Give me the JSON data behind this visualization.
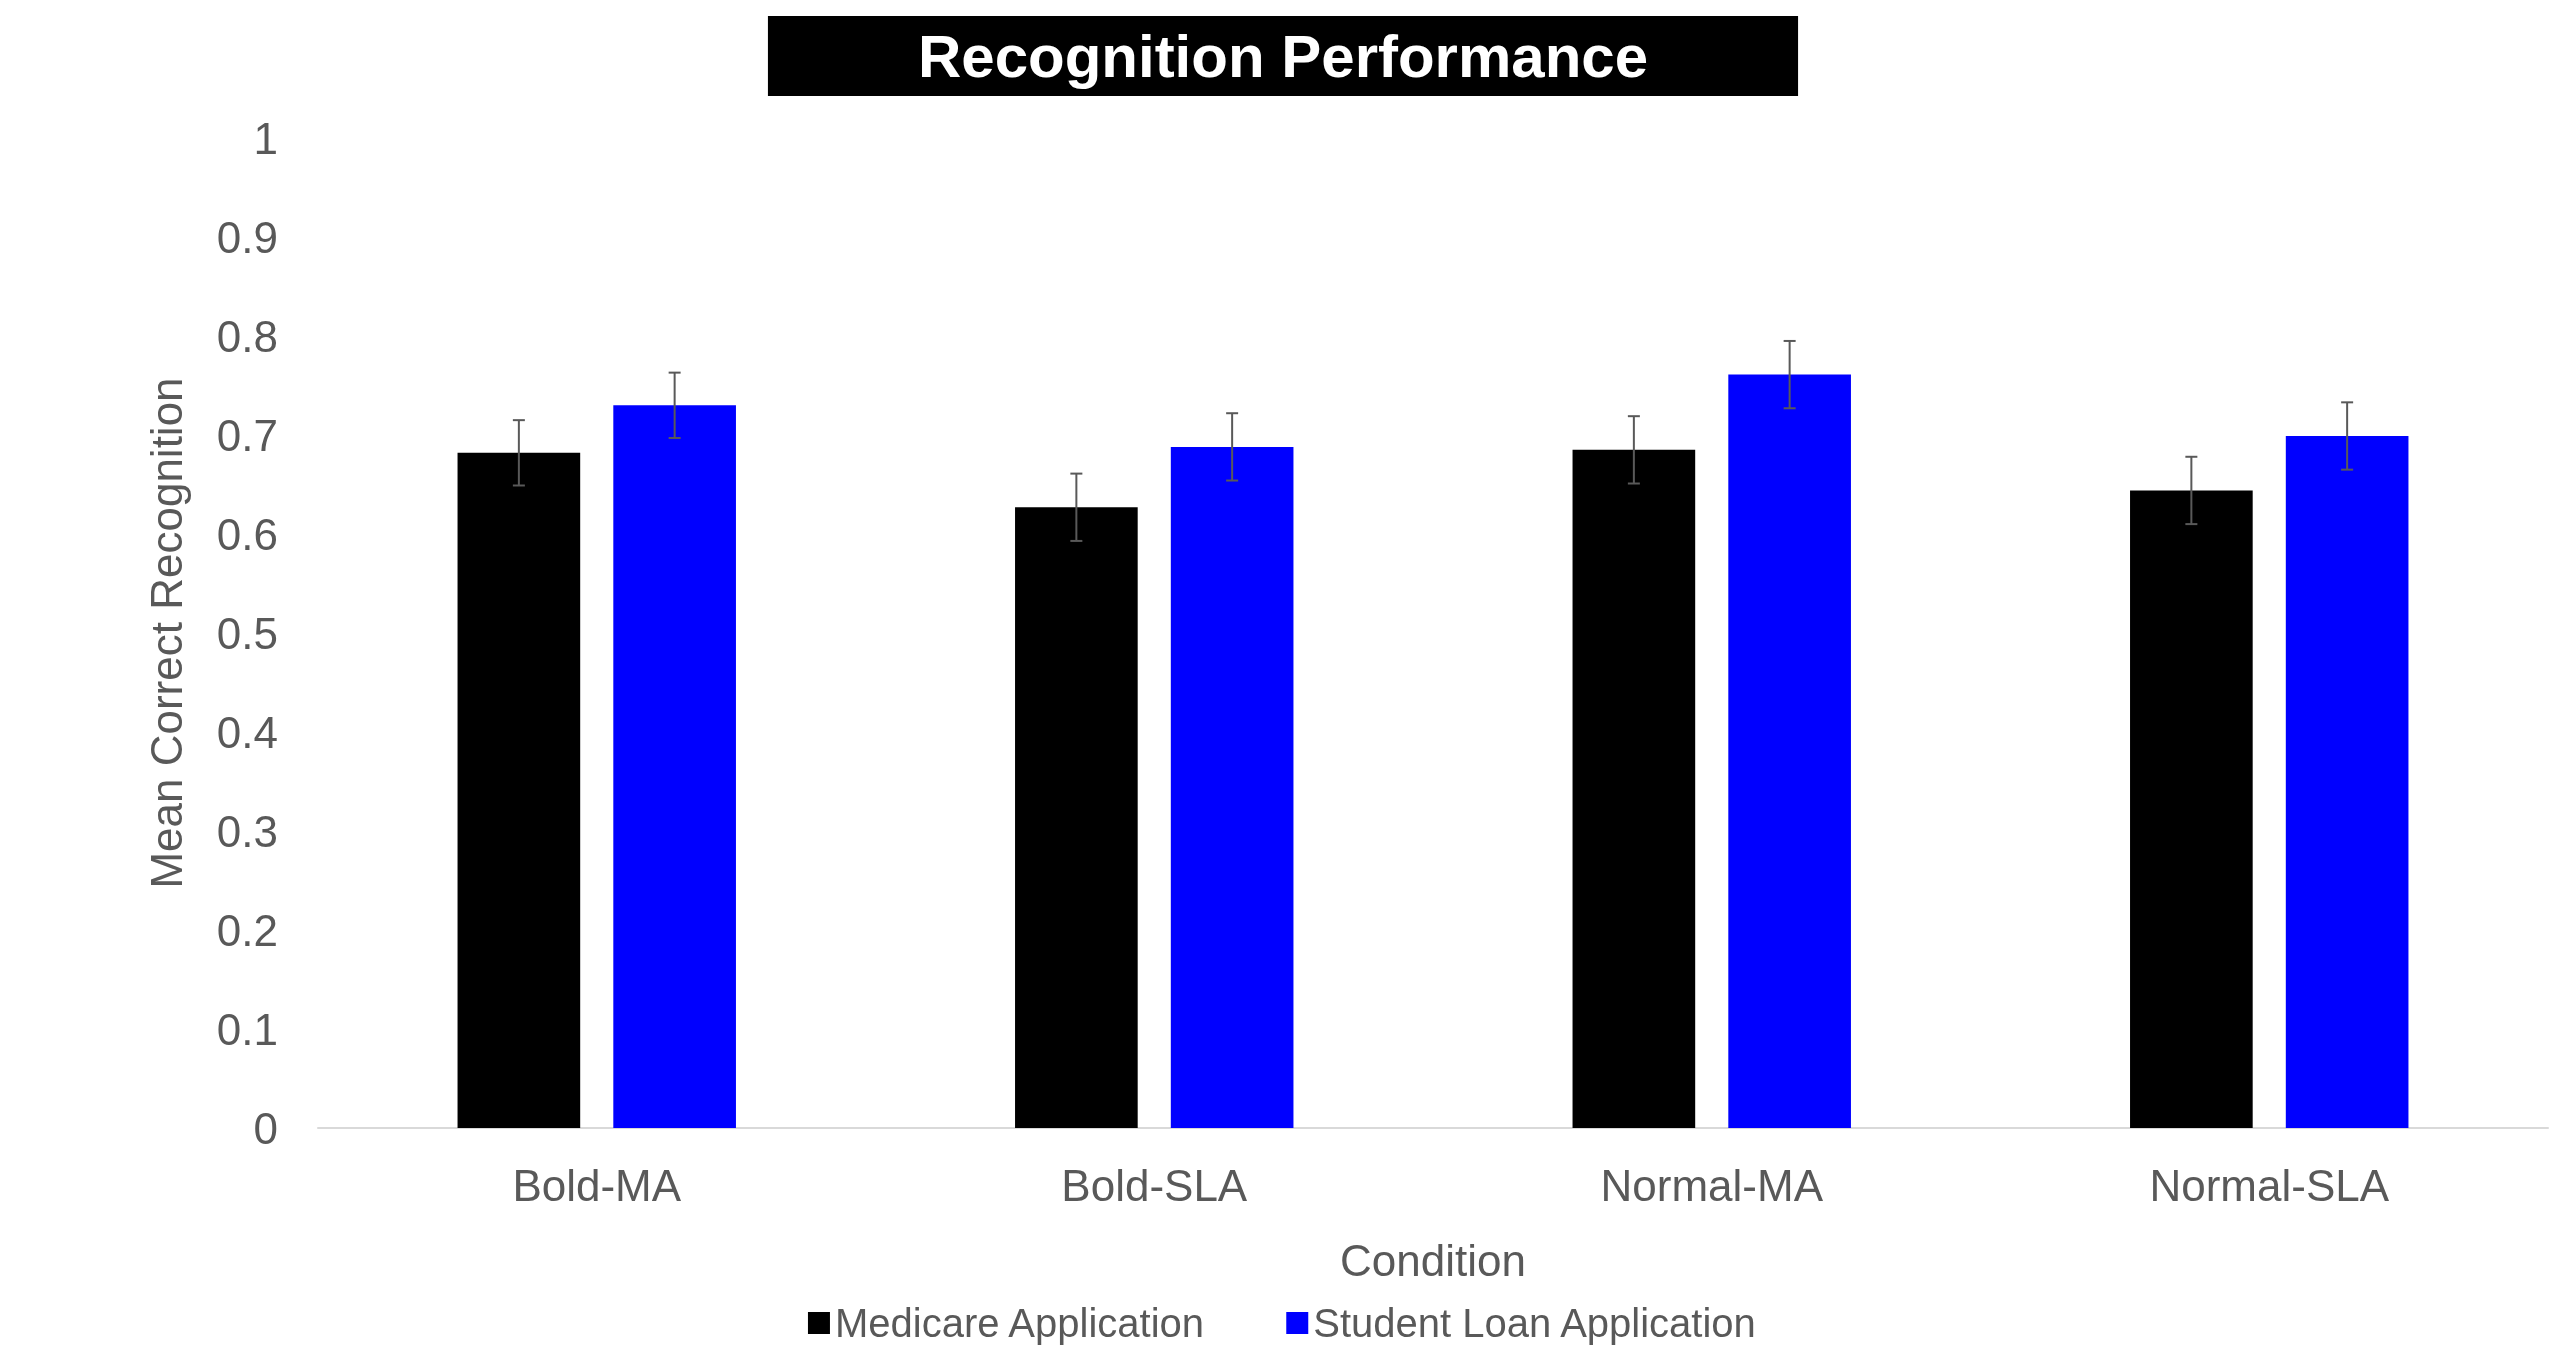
{
  "chart_data": {
    "type": "bar",
    "title": "Recognition Performance",
    "xlabel": "Condition",
    "ylabel": "Mean Correct Recognition",
    "categories": [
      "Bold-MA",
      "Bold-SLA",
      "Normal-MA",
      "Normal-SLA"
    ],
    "series": [
      {
        "name": "Medicare Application",
        "color": "#000000",
        "values": [
          0.682,
          0.627,
          0.685,
          0.644
        ],
        "errors": [
          0.033,
          0.034,
          0.034,
          0.034
        ]
      },
      {
        "name": "Student Loan Application",
        "color": "#0000ff",
        "values": [
          0.73,
          0.688,
          0.761,
          0.699
        ],
        "errors": [
          0.033,
          0.034,
          0.034,
          0.034
        ]
      }
    ],
    "ylim": [
      0,
      1
    ],
    "yticks": [
      0,
      0.1,
      0.2,
      0.3,
      0.4,
      0.5,
      0.6,
      0.7,
      0.8,
      0.9,
      1
    ],
    "grid": false,
    "legend": "bottom"
  }
}
